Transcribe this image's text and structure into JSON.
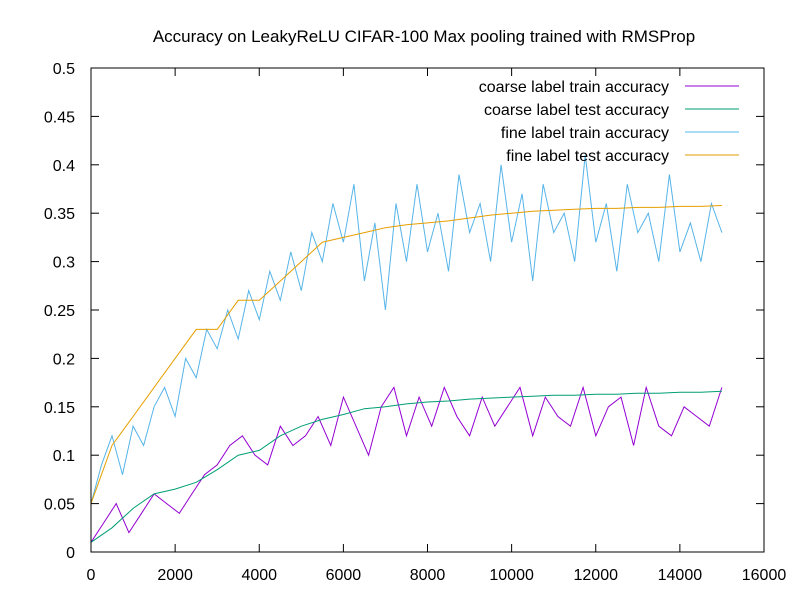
{
  "chart_data": {
    "type": "line",
    "title": "Accuracy on LeakyReLU CIFAR-100 Max pooling trained with RMSProp",
    "xlabel": "",
    "ylabel": "",
    "xlim": [
      0,
      16000
    ],
    "ylim": [
      0,
      0.5
    ],
    "x_ticks": [
      0,
      2000,
      4000,
      6000,
      8000,
      10000,
      12000,
      14000,
      16000
    ],
    "x_tick_labels": [
      "0",
      "2000",
      "4000",
      "6000",
      "8000",
      "10000",
      "12000",
      "14000",
      "16000"
    ],
    "y_ticks": [
      0,
      0.05,
      0.1,
      0.15,
      0.2,
      0.25,
      0.3,
      0.35,
      0.4,
      0.45,
      0.5
    ],
    "y_tick_labels": [
      "0",
      "0.05",
      "0.1",
      "0.15",
      "0.2",
      "0.25",
      "0.3",
      "0.35",
      "0.4",
      "0.45",
      "0.5"
    ],
    "grid": false,
    "legend_position": "top-right",
    "series": [
      {
        "name": "coarse label train accuracy",
        "color": "#9400d3",
        "x": [
          0,
          300,
          600,
          900,
          1200,
          1500,
          1800,
          2100,
          2400,
          2700,
          3000,
          3300,
          3600,
          3900,
          4200,
          4500,
          4800,
          5100,
          5400,
          5700,
          6000,
          6300,
          6600,
          6900,
          7200,
          7500,
          7800,
          8100,
          8400,
          8700,
          9000,
          9300,
          9600,
          9900,
          10200,
          10500,
          10800,
          11100,
          11400,
          11700,
          12000,
          12300,
          12600,
          12900,
          13200,
          13500,
          13800,
          14100,
          14400,
          14700,
          15000
        ],
        "values": [
          0.01,
          0.03,
          0.05,
          0.02,
          0.04,
          0.06,
          0.05,
          0.04,
          0.06,
          0.08,
          0.09,
          0.11,
          0.12,
          0.1,
          0.09,
          0.13,
          0.11,
          0.12,
          0.14,
          0.11,
          0.16,
          0.13,
          0.1,
          0.15,
          0.17,
          0.12,
          0.16,
          0.13,
          0.17,
          0.14,
          0.12,
          0.16,
          0.13,
          0.15,
          0.17,
          0.12,
          0.16,
          0.14,
          0.13,
          0.17,
          0.12,
          0.15,
          0.16,
          0.11,
          0.17,
          0.13,
          0.12,
          0.15,
          0.14,
          0.13,
          0.17
        ]
      },
      {
        "name": "coarse label test accuracy",
        "color": "#009e73",
        "x": [
          0,
          500,
          1000,
          1500,
          2000,
          2500,
          3000,
          3500,
          4000,
          4500,
          5000,
          5500,
          6000,
          6500,
          7000,
          7500,
          8000,
          8500,
          9000,
          9500,
          10000,
          10500,
          11000,
          11500,
          12000,
          12500,
          13000,
          13500,
          14000,
          14500,
          15000
        ],
        "values": [
          0.01,
          0.025,
          0.045,
          0.06,
          0.065,
          0.072,
          0.085,
          0.1,
          0.105,
          0.12,
          0.13,
          0.137,
          0.142,
          0.148,
          0.15,
          0.153,
          0.155,
          0.156,
          0.158,
          0.159,
          0.16,
          0.161,
          0.162,
          0.162,
          0.163,
          0.163,
          0.164,
          0.164,
          0.165,
          0.165,
          0.166
        ]
      },
      {
        "name": "fine label train accuracy",
        "color": "#56b4e9",
        "x": [
          0,
          250,
          500,
          750,
          1000,
          1250,
          1500,
          1750,
          2000,
          2250,
          2500,
          2750,
          3000,
          3250,
          3500,
          3750,
          4000,
          4250,
          4500,
          4750,
          5000,
          5250,
          5500,
          5750,
          6000,
          6250,
          6500,
          6750,
          7000,
          7250,
          7500,
          7750,
          8000,
          8250,
          8500,
          8750,
          9000,
          9250,
          9500,
          9750,
          10000,
          10250,
          10500,
          10750,
          11000,
          11250,
          11500,
          11750,
          12000,
          12250,
          12500,
          12750,
          13000,
          13250,
          13500,
          13750,
          14000,
          14250,
          14500,
          14750,
          15000
        ],
        "values": [
          0.05,
          0.09,
          0.12,
          0.08,
          0.13,
          0.11,
          0.15,
          0.17,
          0.14,
          0.2,
          0.18,
          0.23,
          0.21,
          0.25,
          0.22,
          0.27,
          0.24,
          0.29,
          0.26,
          0.31,
          0.27,
          0.33,
          0.3,
          0.36,
          0.32,
          0.38,
          0.28,
          0.34,
          0.25,
          0.36,
          0.3,
          0.38,
          0.31,
          0.35,
          0.29,
          0.39,
          0.33,
          0.36,
          0.3,
          0.4,
          0.32,
          0.37,
          0.28,
          0.38,
          0.33,
          0.35,
          0.3,
          0.41,
          0.32,
          0.36,
          0.29,
          0.38,
          0.33,
          0.35,
          0.3,
          0.39,
          0.31,
          0.34,
          0.3,
          0.36,
          0.33
        ]
      },
      {
        "name": "fine label test accuracy",
        "color": "#e69f00",
        "x": [
          0,
          500,
          1000,
          1500,
          2000,
          2500,
          3000,
          3500,
          4000,
          4500,
          5000,
          5500,
          6000,
          6500,
          7000,
          7500,
          8000,
          8500,
          9000,
          9500,
          10000,
          10500,
          11000,
          11500,
          12000,
          12500,
          13000,
          13500,
          14000,
          14500,
          15000
        ],
        "values": [
          0.05,
          0.11,
          0.14,
          0.17,
          0.2,
          0.23,
          0.23,
          0.26,
          0.26,
          0.28,
          0.3,
          0.32,
          0.325,
          0.33,
          0.335,
          0.338,
          0.34,
          0.342,
          0.345,
          0.348,
          0.35,
          0.352,
          0.353,
          0.354,
          0.355,
          0.355,
          0.356,
          0.356,
          0.357,
          0.357,
          0.358
        ]
      }
    ]
  }
}
